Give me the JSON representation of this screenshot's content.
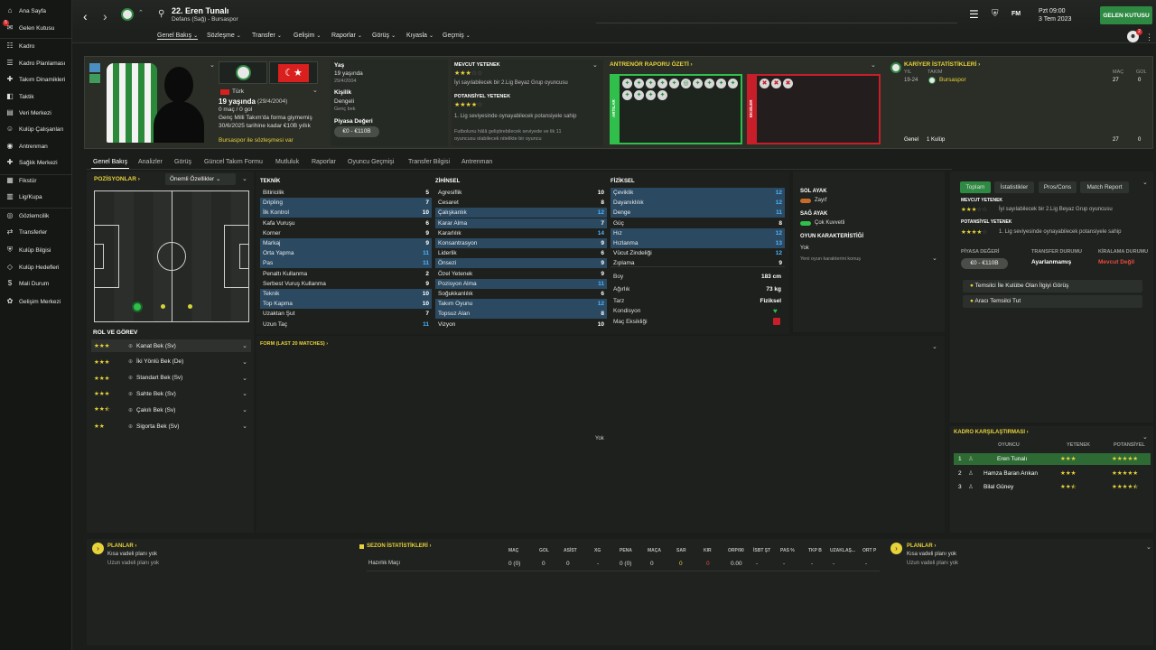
{
  "sidebar": {
    "items": [
      "Ana Sayfa",
      "Gelen Kutusu",
      "Kadro",
      "Kadro Planlaması",
      "Takım Dinamikleri",
      "Taktik",
      "Veri Merkezi",
      "Kulüp Çalışanları",
      "Antrenman",
      "Sağlık Merkezi",
      "Fikstür",
      "Lig/Kupa",
      "Gözlemcilik",
      "Transferler",
      "Kulüp Bilgisi",
      "Kulüp Hedefleri",
      "Mali Durum",
      "Gelişim Merkezi"
    ],
    "inbox_badge": "5"
  },
  "header": {
    "number_name": "22. Eren Tunalı",
    "subtitle": "Defans (Sağ) - Bursaspor",
    "date_line1": "Pzt 09:00",
    "date_line2": "3 Tem 2023",
    "inbox_btn": "GELEN KUTUSU",
    "fm": "FM",
    "notif_count": "2"
  },
  "tabs": [
    "Genel Bakış",
    "Sözleşme",
    "Transfer",
    "Gelişim",
    "Raporlar",
    "Görüş",
    "Kıyasla",
    "Geçmiş"
  ],
  "bio": {
    "nationality": "Türk",
    "age": "19 yaşında",
    "dob": "(29/4/2004)",
    "caps": "0 maç / 0 gol",
    "contract_note": "Genç Milli Takım'da forma giymemiş",
    "contract_until": "30/6/2025 tarihine kadar €10B yıllık",
    "contract_link": "Bursaspor ile sözleşmesi var"
  },
  "info": {
    "age_label": "Yaş",
    "age_val": "19 yaşında",
    "age_sub": "29/4/2004",
    "pers_label": "Kişilik",
    "pers_val": "Dengeli",
    "pers_sub": "Genç bek",
    "value_label": "Piyasa Değeri",
    "value_val": "€0 - €110B"
  },
  "ability": {
    "current_label": "MEVCUT YETENEK",
    "current_text": "İyi sayılabilecek bir 2.Lig Beyaz Grup oyuncusu",
    "potential_label": "POTANSİYEL YETENEK",
    "potential_text": "1. Lig seviyesinde oynayabilecek potansiyele sahip",
    "footnote1": "Futbolunu hâlâ geliştirebilecek seviyede ve lik 11",
    "footnote2": "oyuncusu olabilecek nitelikte bir oyuncu"
  },
  "coach": {
    "title": "ANTRENÖR RAPORU ÖZETİ",
    "pros": "ARTILAR",
    "cons": "EKSİLER"
  },
  "career": {
    "title": "KARİYER İSTATİSTİKLERİ",
    "col_year": "YIL",
    "col_team": "TAKIM",
    "col_apps": "MAÇ",
    "col_goals": "GOL",
    "year": "19-24",
    "team": "Bursaspor",
    "apps": "27",
    "goals": "0",
    "total_label": "Genel",
    "total_clubs": "1 Kulüp",
    "total_apps": "27",
    "total_goals": "0"
  },
  "subtabs": [
    "Genel Bakış",
    "Analizler",
    "Görüş",
    "Güncel Takım Formu",
    "Mutluluk",
    "Raporlar",
    "Oyuncu Geçmişi",
    "Transfer Bilgisi",
    "Antrenman"
  ],
  "positions": {
    "title": "POZİSYONLAR",
    "dropdown": "Önemli Özellikler"
  },
  "roles": {
    "title": "ROL VE GÖREV",
    "items": [
      "Kanat Bek (Sv)",
      "İki Yönlü Bek (De)",
      "Standart Bek (Sv)",
      "Sahte Bek (Sv)",
      "Çakılı Bek (Sv)",
      "Sigorta Bek (Sv)"
    ]
  },
  "technical": {
    "title": "TEKNİK",
    "rows": [
      [
        "Bitiricilik",
        "5"
      ],
      [
        "Dripling",
        "7"
      ],
      [
        "İlk Kontrol",
        "10"
      ],
      [
        "Kafa Vuruşu",
        "6"
      ],
      [
        "Korner",
        "9"
      ],
      [
        "Markaj",
        "9"
      ],
      [
        "Orta Yapma",
        "11"
      ],
      [
        "Pas",
        "11"
      ],
      [
        "Penaltı Kullanma",
        "2"
      ],
      [
        "Serbest Vuruş Kullanma",
        "9"
      ],
      [
        "Teknik",
        "10"
      ],
      [
        "Top Kapma",
        "10"
      ],
      [
        "Uzaktan Şut",
        "7"
      ],
      [
        "Uzun Taç",
        "11"
      ]
    ]
  },
  "mental": {
    "title": "ZİHİNSEL",
    "rows": [
      [
        "Agresiflik",
        "10"
      ],
      [
        "Cesaret",
        "8"
      ],
      [
        "Çalışkanlık",
        "12"
      ],
      [
        "Karar Alma",
        "7"
      ],
      [
        "Kararlılık",
        "14"
      ],
      [
        "Konsantrasyon",
        "9"
      ],
      [
        "Liderlik",
        "6"
      ],
      [
        "Önsezi",
        "9"
      ],
      [
        "Özel Yetenek",
        "9"
      ],
      [
        "Pozisyon Alma",
        "11"
      ],
      [
        "Soğukkanlılık",
        "6"
      ],
      [
        "Takım Oyunu",
        "12"
      ],
      [
        "Topsuz Alan",
        "8"
      ],
      [
        "Vizyon",
        "10"
      ]
    ]
  },
  "physical": {
    "title": "FİZİKSEL",
    "rows": [
      [
        "Çeviklik",
        "12"
      ],
      [
        "Dayanıklılık",
        "12"
      ],
      [
        "Denge",
        "11"
      ],
      [
        "Güç",
        "8"
      ],
      [
        "Hız",
        "12"
      ],
      [
        "Hızlanma",
        "13"
      ],
      [
        "Vücut Zindeliği",
        "12"
      ],
      [
        "Zıplama",
        "9"
      ]
    ],
    "height_label": "Boy",
    "height": "183 cm",
    "weight_label": "Ağırlık",
    "weight": "73 kg",
    "style_label": "Tarz",
    "style": "Fiziksel",
    "cond_label": "Kondisyon",
    "unfit_label": "Maç Eksikliği"
  },
  "foot": {
    "left_label": "SOL AYAK",
    "left_val": "Zayıf",
    "right_label": "SAĞ AYAK",
    "right_val": "Çok Kuvvetli",
    "traits_label": "OYUN KARAKTERİSTİĞİ",
    "traits_val": "Yok",
    "traits_sub": "Yeni oyun karakterini konuş"
  },
  "right_panel": {
    "tabs": [
      "Toplam",
      "İstatistikler",
      "Pros/Cons",
      "Match Report"
    ],
    "current_label": "MEVCUT YETENEK",
    "current_text": "İyi sayılabilecek bir 2.Lig Beyaz Grup oyuncusu",
    "potential_label": "POTANSİYEL YETENEK",
    "potential_text": "1. Lig seviyesinde oynayabilecek potansiyele sahip",
    "value_label": "PİYASA DEĞERİ",
    "value_val": "€0 - €110B",
    "transfer_label": "TRANSFER DURUMU",
    "transfer_val": "Ayarlanmamış",
    "loan_label": "KİRALAMA DURUMU",
    "loan_val": "Mevcut Değil",
    "agent_btn": "Temsilci İle Kulübe Olan İlgiyi Görüş",
    "agent_btn2": "Aracı Temsilci Tut"
  },
  "form": {
    "title": "FORM (LAST 20 MATCHES)",
    "empty": "Yok"
  },
  "squad_compare": {
    "title": "KADRO KARŞILAŞTIRMASI",
    "col_player": "OYUNCU",
    "col_ability": "YETENEK",
    "col_potential": "POTANSİYEL",
    "rows": [
      [
        "1",
        "Eren Tunalı"
      ],
      [
        "2",
        "Hamza Baran Arıkan"
      ],
      [
        "3",
        "Bilal Güney"
      ]
    ]
  },
  "plans_left": {
    "title": "PLANLAR",
    "short": "Kısa vadeli planı yok",
    "long": "Uzun vadeli planı yok"
  },
  "plans_right": {
    "title": "PLANLAR",
    "short": "Kısa vadeli planı yok",
    "long": "Uzun vadeli planı yok"
  },
  "season": {
    "title": "SEZON İSTATİSTİKLERİ",
    "headers": [
      "MAÇ",
      "GOL",
      "ASİST",
      "XG",
      "PENA",
      "MAÇA",
      "SAR",
      "KIR",
      "ORP/90",
      "İSBT ŞT",
      "PAS %",
      "TKP B",
      "UZAKLAŞ...",
      "ORT P"
    ],
    "row_label": "Hazırlık Maçı",
    "values": [
      "0 (0)",
      "0",
      "0",
      "-",
      "0 (0)",
      "0",
      "0",
      "0",
      "0.00",
      "-",
      "-",
      "-",
      "-",
      "-"
    ]
  },
  "colors": {
    "accent_green": "#2e8a42",
    "yellow": "#e8d23a",
    "pros_green": "#2fbf4a",
    "cons_red": "#c81e2a"
  }
}
